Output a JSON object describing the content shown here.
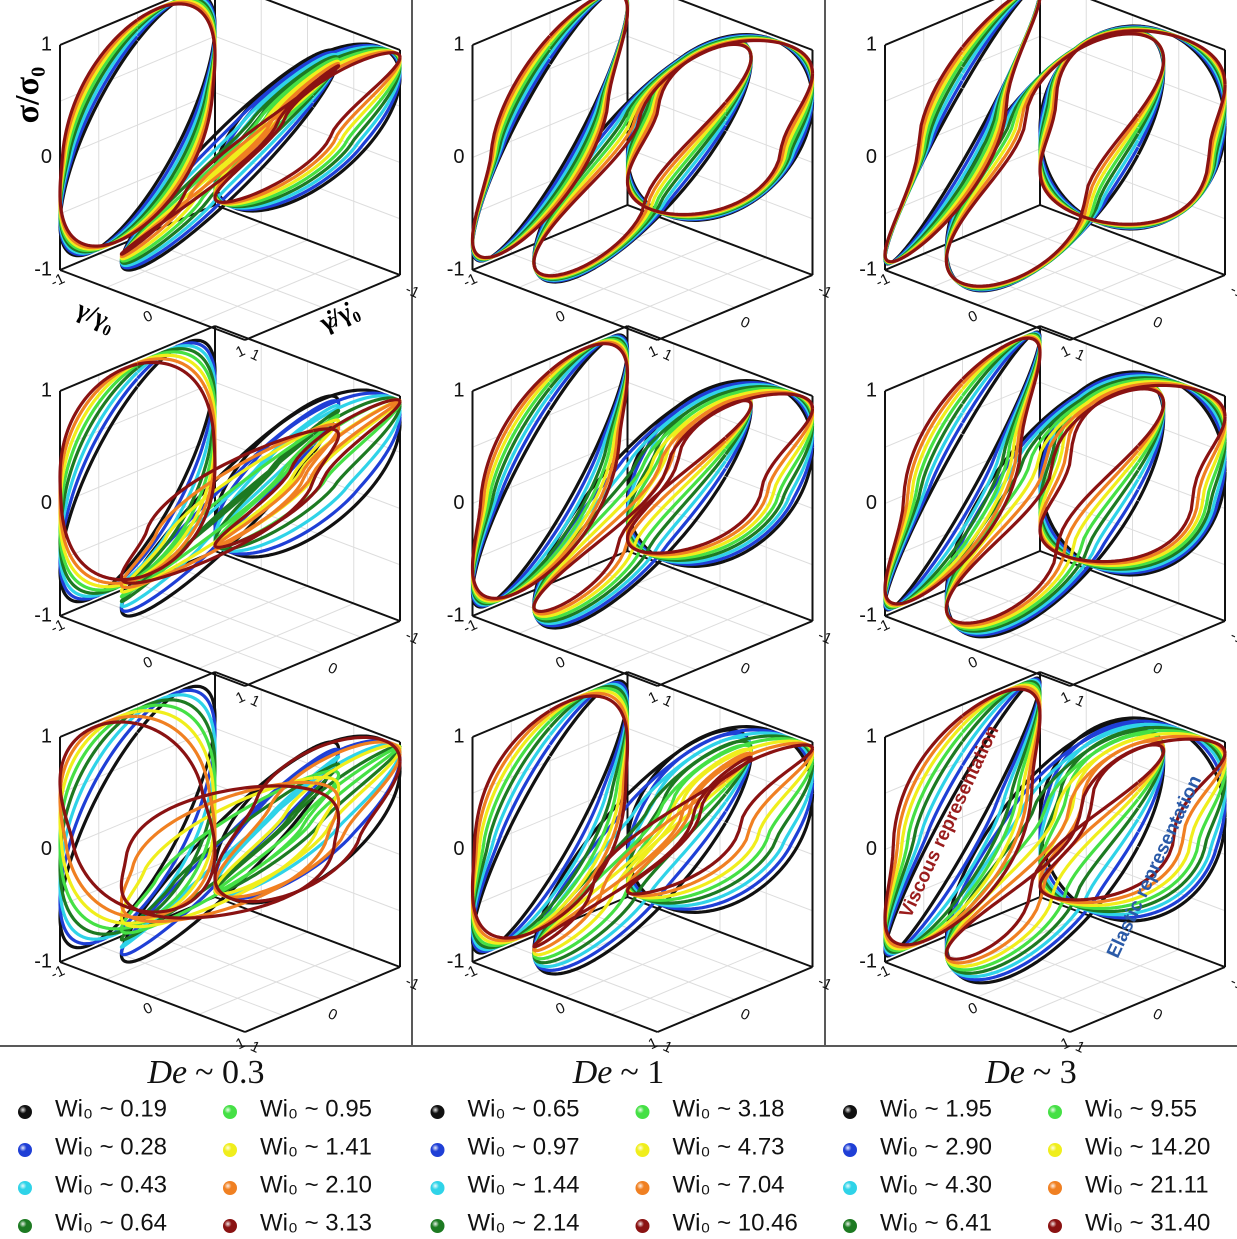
{
  "axis_labels": {
    "stress": "σ/σ₀",
    "strain": "γ/γ₀",
    "rate": "γ̇/γ̇₀"
  },
  "ticks": [
    "1",
    "0",
    "-1"
  ],
  "annotations": {
    "viscous": "Viscous representation",
    "elastic": "Elastic representation"
  },
  "columns": [
    {
      "title": {
        "symbol": "De",
        "value": "~ 0.3"
      },
      "legend": [
        {
          "label": "Wi₀ ~ 0.19",
          "color": "#111111"
        },
        {
          "label": "Wi₀ ~ 0.28",
          "color": "#1f3fd6"
        },
        {
          "label": "Wi₀ ~ 0.43",
          "color": "#2fd3e8"
        },
        {
          "label": "Wi₀ ~ 0.64",
          "color": "#1d7a22"
        },
        {
          "label": "Wi₀ ~ 0.95",
          "color": "#45e045"
        },
        {
          "label": "Wi₀ ~ 1.41",
          "color": "#f0ee1c"
        },
        {
          "label": "Wi₀ ~ 2.10",
          "color": "#f08022"
        },
        {
          "label": "Wi₀ ~ 3.13",
          "color": "#8a1212"
        }
      ]
    },
    {
      "title": {
        "symbol": "De",
        "value": "~ 1"
      },
      "legend": [
        {
          "label": "Wi₀ ~ 0.65",
          "color": "#111111"
        },
        {
          "label": "Wi₀ ~ 0.97",
          "color": "#1f3fd6"
        },
        {
          "label": "Wi₀ ~ 1.44",
          "color": "#2fd3e8"
        },
        {
          "label": "Wi₀ ~ 2.14",
          "color": "#1d7a22"
        },
        {
          "label": "Wi₀ ~ 3.18",
          "color": "#45e045"
        },
        {
          "label": "Wi₀ ~ 4.73",
          "color": "#f0ee1c"
        },
        {
          "label": "Wi₀ ~ 7.04",
          "color": "#f08022"
        },
        {
          "label": "Wi₀ ~ 10.46",
          "color": "#8a1212"
        }
      ]
    },
    {
      "title": {
        "symbol": "De",
        "value": "~ 3"
      },
      "legend": [
        {
          "label": "Wi₀ ~ 1.95",
          "color": "#111111"
        },
        {
          "label": "Wi₀ ~ 2.90",
          "color": "#1f3fd6"
        },
        {
          "label": "Wi₀ ~ 4.30",
          "color": "#2fd3e8"
        },
        {
          "label": "Wi₀ ~ 6.41",
          "color": "#1d7a22"
        },
        {
          "label": "Wi₀ ~ 9.55",
          "color": "#45e045"
        },
        {
          "label": "Wi₀ ~ 14.20",
          "color": "#f0ee1c"
        },
        {
          "label": "Wi₀ ~ 21.11",
          "color": "#f08022"
        },
        {
          "label": "Wi₀ ~ 31.40",
          "color": "#8a1212"
        }
      ]
    }
  ]
}
